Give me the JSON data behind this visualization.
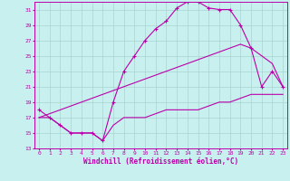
{
  "xlabel": "Windchill (Refroidissement éolien,°C)",
  "bg_color": "#c8f0ee",
  "grid_color": "#a8d4d0",
  "line_color": "#bb00aa",
  "xlim_min": 0,
  "xlim_max": 23,
  "ylim_min": 13,
  "ylim_max": 32,
  "yticks": [
    13,
    15,
    17,
    19,
    21,
    23,
    25,
    27,
    29,
    31
  ],
  "xticks": [
    0,
    1,
    2,
    3,
    4,
    5,
    6,
    7,
    8,
    9,
    10,
    11,
    12,
    13,
    14,
    15,
    16,
    17,
    18,
    19,
    20,
    21,
    22,
    23
  ],
  "line1_x": [
    0,
    1,
    2,
    3,
    4,
    5,
    6,
    7,
    8,
    9,
    10,
    11,
    12,
    13,
    14,
    15,
    16,
    17,
    18,
    19,
    20,
    21,
    22,
    23
  ],
  "line1_y": [
    18,
    17,
    16,
    15,
    15,
    15,
    14,
    19,
    23,
    25,
    27,
    28.5,
    29.5,
    31.2,
    32,
    32,
    31.2,
    31,
    31,
    29,
    26,
    21,
    23,
    21
  ],
  "line2_x": [
    0,
    1,
    2,
    3,
    4,
    5,
    6,
    7,
    8,
    9,
    10,
    11,
    12,
    13,
    14,
    15,
    16,
    17,
    18,
    19,
    20,
    21,
    22,
    23
  ],
  "line2_y": [
    17,
    17.5,
    18,
    18.5,
    19,
    19.5,
    20,
    20.5,
    21,
    21.5,
    22,
    22.5,
    23,
    23.5,
    24,
    24.5,
    25,
    25.5,
    26,
    26.5,
    26,
    25,
    24,
    21
  ],
  "line3_x": [
    0,
    1,
    2,
    3,
    4,
    5,
    6,
    7,
    8,
    9,
    10,
    11,
    12,
    13,
    14,
    15,
    16,
    17,
    18,
    19,
    20,
    21,
    22,
    23
  ],
  "line3_y": [
    17,
    17,
    16,
    15,
    15,
    15,
    14,
    16,
    17,
    17,
    17,
    17.5,
    18,
    18,
    18,
    18,
    18.5,
    19,
    19,
    19.5,
    20,
    20,
    20,
    20
  ]
}
